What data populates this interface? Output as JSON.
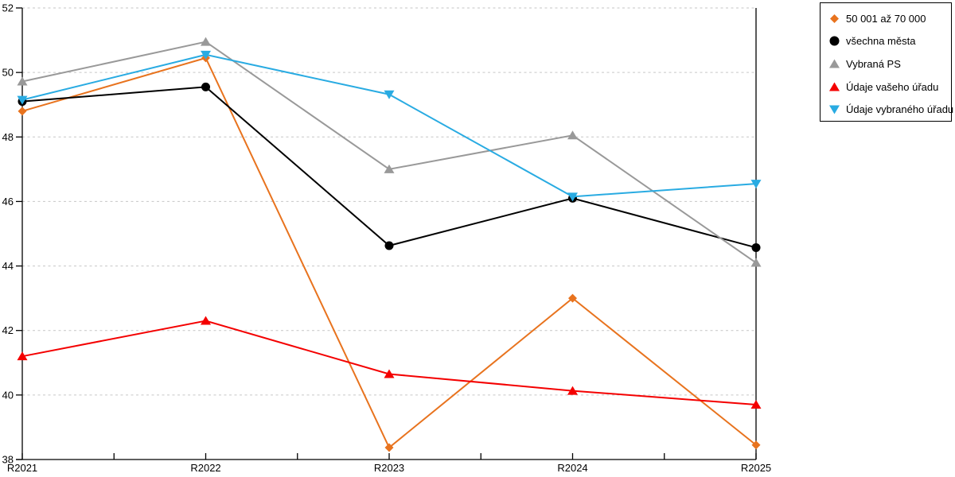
{
  "chart_data": {
    "type": "line",
    "title": "",
    "xlabel": "",
    "ylabel": "",
    "categories": [
      "R2021",
      "R2022",
      "R2023",
      "R2024",
      "R2025"
    ],
    "series": [
      {
        "name": "50 001 až 70 000",
        "marker": "diamond",
        "color": "#E8731E",
        "values": [
          48.8,
          50.45,
          38.37,
          43.0,
          38.45
        ]
      },
      {
        "name": "všechna města",
        "marker": "circle",
        "color": "#000000",
        "values": [
          49.1,
          49.55,
          44.63,
          46.1,
          44.57
        ]
      },
      {
        "name": "Vybraná PS",
        "marker": "triangle-up",
        "color": "#999999",
        "values": [
          49.72,
          50.95,
          47.0,
          48.05,
          44.1
        ]
      },
      {
        "name": "Údaje vašeho úřadu",
        "marker": "triangle-up",
        "color": "#F40000",
        "values": [
          41.2,
          42.3,
          40.65,
          40.13,
          39.7
        ]
      },
      {
        "name": "Údaje vybraného úřadu",
        "marker": "triangle-down",
        "color": "#29ABE2",
        "values": [
          49.15,
          50.55,
          49.32,
          46.15,
          46.55
        ]
      }
    ],
    "ylim": [
      38,
      52
    ],
    "yticks": [
      38,
      40,
      42,
      44,
      46,
      48,
      50,
      52
    ],
    "grid": "horizontal-dashed",
    "grid_color": "#C6C6C6",
    "axis_color": "#000000",
    "legend_position": "top-right"
  }
}
